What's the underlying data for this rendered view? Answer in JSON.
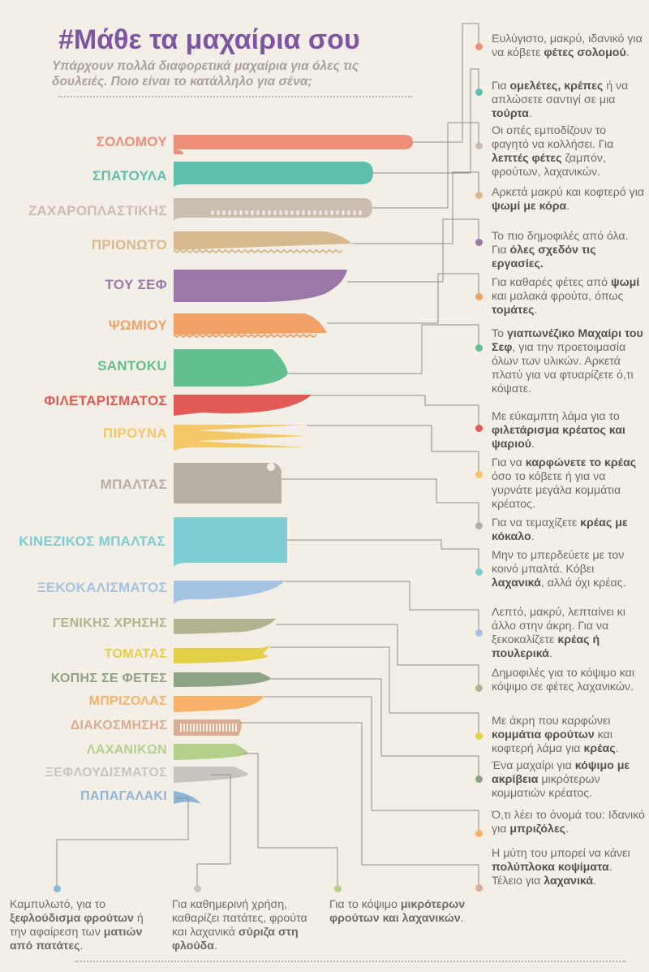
{
  "title": "#Μάθε τα μαχαίρια σου",
  "subtitle": "Υπάρχουν πολλά διαφορετικά μαχαίρια για όλες τις δουλειές. Ποιο είναι το κατάλληλο για σένα;",
  "colors": {
    "title": "#7e55a3",
    "background": "#f3efe6",
    "line": "#8f8c88"
  },
  "knives": [
    {
      "label": "ΣΟΛΟΜΟΥ",
      "color": "#ef8d7b",
      "icon": "salmon-knife-icon"
    },
    {
      "label": "ΣΠΑΤΟΥΛΑ",
      "color": "#5fbfad",
      "icon": "spatula-knife-icon"
    },
    {
      "label": "ΖΑΧΑΡΟΠΛΑΣΤΙΚΗΣ",
      "color": "#c9beb1",
      "icon": "pastry-knife-icon"
    },
    {
      "label": "ΠΡΙΟΝΩΤΟ",
      "color": "#d7b990",
      "icon": "serrated-knife-icon"
    },
    {
      "label": "ΤΟΥ ΣΕΦ",
      "color": "#9c78a9",
      "icon": "chef-knife-icon"
    },
    {
      "label": "ΨΩΜΙΟΥ",
      "color": "#f0a168",
      "icon": "bread-knife-icon"
    },
    {
      "label": "SANTOKU",
      "color": "#62bf90",
      "icon": "santoku-knife-icon"
    },
    {
      "label": "ΦΙΛΕΤΑΡΙΣΜΑΤΟΣ",
      "color": "#e15a55",
      "icon": "fillet-knife-icon"
    },
    {
      "label": "ΠΙΡΟΥΝΑ",
      "color": "#f4c867",
      "icon": "carving-fork-icon"
    },
    {
      "label": "ΜΠΑΛΤΑΣ",
      "color": "#b7aea4",
      "icon": "cleaver-icon"
    },
    {
      "label": "ΚΙΝΕΖΙΚΟΣ ΜΠΑΛΤΑΣ",
      "color": "#7dcdd3",
      "icon": "chinese-cleaver-icon"
    },
    {
      "label": "ΞΕΚΟΚΑΛΙΣΜΑΤΟΣ",
      "color": "#a4c3e2",
      "icon": "boning-knife-icon"
    },
    {
      "label": "ΓΕΝΙΚΗΣ ΧΡΗΣΗΣ",
      "color": "#b4b391",
      "icon": "utility-knife-icon"
    },
    {
      "label": "ΤΟΜΑΤΑΣ",
      "color": "#e4cf49",
      "icon": "tomato-knife-icon"
    },
    {
      "label": "ΚΟΠΗΣ ΣΕ ΦΕΤΕΣ",
      "color": "#8ea285",
      "icon": "slicing-knife-icon"
    },
    {
      "label": "ΜΠΡΙΖΟΛΑΣ",
      "color": "#f5b268",
      "icon": "steak-knife-icon"
    },
    {
      "label": "ΔΙΑΚΟΣΜΗΣΗΣ",
      "color": "#d8ad92",
      "icon": "decorating-knife-icon"
    },
    {
      "label": "ΛΑΧΑΝΙΚΩΝ",
      "color": "#b5d08a",
      "icon": "vegetable-knife-icon"
    },
    {
      "label": "ΞΕΦΛΟΥΔΙΣΜΑΤΟΣ",
      "color": "#c8c5c1",
      "icon": "peeling-knife-icon"
    },
    {
      "label": "ΠΑΠΑΓΑΛΑΚΙ",
      "color": "#8fb4d4",
      "icon": "birds-beak-knife-icon"
    }
  ],
  "descriptions": [
    {
      "dot": "#ef8d7b",
      "parts": [
        [
          "Ευλύγιστο, μακρύ, ιδανικό για να κόβετε ",
          0
        ],
        [
          "φέτες σολομού",
          1
        ],
        [
          ".",
          0
        ]
      ]
    },
    {
      "dot": "#5fbfad",
      "parts": [
        [
          "Για ",
          0
        ],
        [
          "ομελέτες, κρέπες",
          1
        ],
        [
          " ή να απλώσετε σαντιγί σε μια ",
          0
        ],
        [
          "τούρτα",
          1
        ],
        [
          ".",
          0
        ]
      ]
    },
    {
      "dot": "#c9beb1",
      "parts": [
        [
          "Οι οπές εμποδίζουν το φαγητό να κολλήσει. Για ",
          0
        ],
        [
          "λεπτές φέτες",
          1
        ],
        [
          " ζαμπόν, φρούτων, λαχανικών.",
          0
        ]
      ]
    },
    {
      "dot": "#d7b990",
      "parts": [
        [
          "Αρκετά μακρύ και κοφτερό για ",
          0
        ],
        [
          "ψωμί με κόρα",
          1
        ],
        [
          ".",
          0
        ]
      ]
    },
    {
      "dot": "#9c78a9",
      "parts": [
        [
          "Το πιο δημοφιλές από όλα. Για ",
          0
        ],
        [
          "όλες σχεδόν τις εργασίες.",
          1
        ]
      ]
    },
    {
      "dot": "#f0a168",
      "parts": [
        [
          "Για καθαρές φέτες από ",
          0
        ],
        [
          "ψωμί",
          1
        ],
        [
          " και μαλακά φρούτα, όπως ",
          0
        ],
        [
          "τομάτες",
          1
        ],
        [
          ".",
          0
        ]
      ]
    },
    {
      "dot": "#62bf90",
      "parts": [
        [
          "Το ",
          0
        ],
        [
          "γιαπωνέζικο Μαχαίρι του Σεφ",
          1
        ],
        [
          ", για την προετοιμασία όλων των υλικών. Αρκετά πλατύ για να φτυαρίζετε ό,τι κόψατε.",
          0
        ]
      ]
    },
    {
      "dot": "#e15a55",
      "parts": [
        [
          "Με εύκαμπτη λάμα για το ",
          0
        ],
        [
          "φιλετάρισμα κρέατος και ψαριού",
          1
        ],
        [
          ".",
          0
        ]
      ]
    },
    {
      "dot": "#f4c867",
      "parts": [
        [
          "Για να ",
          0
        ],
        [
          "καρφώνετε το κρέας",
          1
        ],
        [
          " όσο το κόβετε ή για να γυρνάτε μεγάλα κομμάτια κρέατος.",
          0
        ]
      ]
    },
    {
      "dot": "#b7aea4",
      "parts": [
        [
          "Για να τεμαχίζετε ",
          0
        ],
        [
          "κρέας με κόκαλο",
          1
        ],
        [
          ".",
          0
        ]
      ]
    },
    {
      "dot": "#7dcdd3",
      "parts": [
        [
          "Μην το μπερδεύετε με τον κοινό μπαλτά.  Κόβει ",
          0
        ],
        [
          "λαχανικά",
          1
        ],
        [
          ", αλλά όχι κρέας.",
          0
        ]
      ]
    },
    {
      "dot": "#a4c3e2",
      "parts": [
        [
          "Λεπτό, μακρύ, λεπταίνει κι άλλο στην άκρη. Για να ξεκοκαλίζετε ",
          0
        ],
        [
          "κρέας ή πουλερικά",
          1
        ],
        [
          ".",
          0
        ]
      ]
    },
    {
      "dot": "#b4b391",
      "parts": [
        [
          "Δημοφιλές για το κόψιμο και κόψιμο σε φέτες λαχανικών.",
          0
        ]
      ]
    },
    {
      "dot": "#e4cf49",
      "parts": [
        [
          "Με άκρη που καρφώνει ",
          0
        ],
        [
          "κομμάτια φρούτων",
          1
        ],
        [
          " και κοφτερή λάμα για ",
          0
        ],
        [
          "κρέας",
          1
        ],
        [
          ".",
          0
        ]
      ]
    },
    {
      "dot": "#8ea285",
      "parts": [
        [
          "Ένα μαχαίρι για ",
          0
        ],
        [
          "κόψιμο με ακρίβεια",
          1
        ],
        [
          " μικρότερων κομματιών κρέατος.",
          0
        ]
      ]
    },
    {
      "dot": "#f5b268",
      "parts": [
        [
          "Ό,τι λέει το όνομά του: Ιδανικό για ",
          0
        ],
        [
          "μπριζόλες",
          1
        ],
        [
          ".",
          0
        ]
      ]
    },
    {
      "dot": "#d8ad92",
      "parts": [
        [
          "Η μύτη του μπορεί να κάνει ",
          0
        ],
        [
          "πολύπλοκα κοψίματα",
          1
        ],
        [
          ". Τέλειο για ",
          0
        ],
        [
          "λαχανικά",
          1
        ],
        [
          ".",
          0
        ]
      ]
    }
  ],
  "bottom_descriptions": [
    {
      "dot": "#8fb4d4",
      "parts": [
        [
          "Καμπυλωτό, για το ",
          0
        ],
        [
          "ξεφλούδισμα φρούτων",
          1
        ],
        [
          " ή την αφαίρεση των ",
          0
        ],
        [
          "ματιών από πατάτες",
          1
        ],
        [
          ".",
          0
        ]
      ]
    },
    {
      "dot": "#c8c5c1",
      "parts": [
        [
          "Για καθημερινή χρήση, καθαρίζει  πατάτες, φρούτα και λαχανικά ",
          0
        ],
        [
          "σύριζα στη φλούδα",
          1
        ],
        [
          ".",
          0
        ]
      ]
    },
    {
      "dot": "#b5d08a",
      "parts": [
        [
          "Για το κόψιμο ",
          0
        ],
        [
          "μικρότερων φρούτων και λαχανικών",
          1
        ],
        [
          ".",
          0
        ]
      ]
    }
  ]
}
